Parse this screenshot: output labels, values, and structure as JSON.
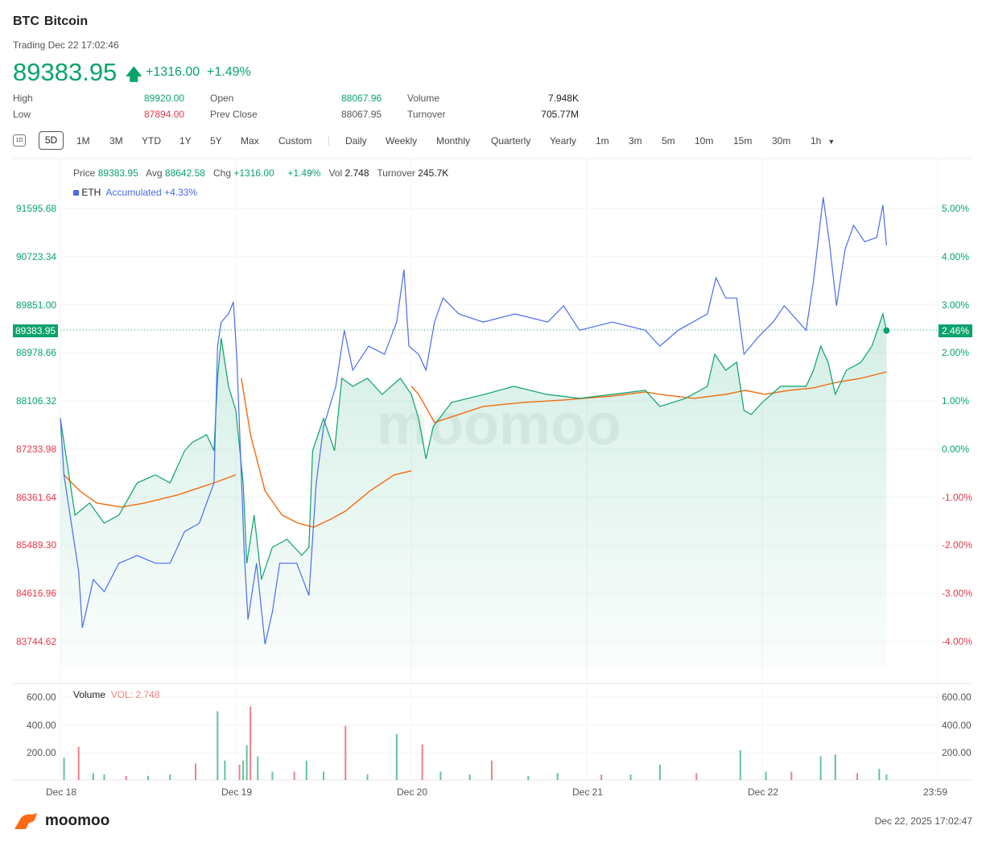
{
  "header": {
    "symbol": "BTC",
    "name": "Bitcoin",
    "trading": "Trading Dec 22 17:02:46",
    "price": "89383.95",
    "arrow_icon": "arrow-up-icon",
    "change": "+1316.00",
    "change_pct": "+1.49%"
  },
  "stats": [
    {
      "label": "High",
      "value": "89920.00",
      "color": "green"
    },
    {
      "label": "Low",
      "value": "87894.00",
      "color": "red"
    },
    {
      "label": "Open",
      "value": "88067.96",
      "color": "green"
    },
    {
      "label": "Prev Close",
      "value": "88067.95",
      "color": "neutral"
    },
    {
      "label": "Volume",
      "value": "7.948K",
      "color": "neutral"
    },
    {
      "label": "Turnover",
      "value": "705.77M",
      "color": "neutral"
    }
  ],
  "toolbar": {
    "btn_1d": "1D",
    "ranges": [
      "5D",
      "1M",
      "3M",
      "YTD",
      "1Y",
      "5Y",
      "Max",
      "Custom"
    ],
    "active_range": "5D",
    "periods": [
      "Daily",
      "Weekly",
      "Monthly",
      "Quarterly",
      "Yearly",
      "1m",
      "3m",
      "5m",
      "10m",
      "15m",
      "30m",
      "1h"
    ]
  },
  "info": {
    "price_label": "Price",
    "price": "89383.95",
    "avg_label": "Avg",
    "avg": "88642.58",
    "chg_label": "Chg",
    "chg": "+1316.00",
    "chg_pct": "+1.49%",
    "vol_label": "Vol",
    "vol": "2.748",
    "turnover_label": "Turnover",
    "turnover": "245.7K",
    "compare_symbol": "ETH",
    "compare_text": "Accumulated +4.33%"
  },
  "volume_panel": {
    "label": "Volume",
    "vol_text": "VOL: 2.748"
  },
  "footer": {
    "brand": "moomoo",
    "timestamp": "Dec 22, 2025 17:02:47"
  },
  "colors": {
    "up": "#0aa36b",
    "down": "#e8394c",
    "eth": "#4a6cf0",
    "avg": "#f26b0f"
  },
  "chart_data": {
    "type": "line",
    "x_ticks": [
      "Dec 18",
      "Dec 19",
      "Dec 20",
      "Dec 21",
      "Dec 22",
      "23:59"
    ],
    "y_ticks_left": [
      "91595.68",
      "90723.34",
      "89851.00",
      "88978.66",
      "88106.32",
      "87233.98",
      "86361.64",
      "85489.30",
      "84616.96",
      "83744.62"
    ],
    "y_ticks_right": [
      "5.00%",
      "4.00%",
      "3.00%",
      "2.00%",
      "1.00%",
      "0.00%",
      "-1.00%",
      "-2.00%",
      "-3.00%",
      "-4.00%"
    ],
    "ylim_price": [
      83744.62,
      91595.68
    ],
    "prev_close": 88067.95,
    "current_price_label": "89383.95",
    "current_pct_label": "2.46%",
    "volume_ticks": [
      "600.00",
      "400.00",
      "200.00"
    ],
    "volume_ticks_right": [
      "600.00",
      "400.00",
      "200.00"
    ],
    "grid": true,
    "series": [
      {
        "name": "BTC",
        "kind": "price",
        "points": [
          [
            "12-18 00:00",
            87788
          ],
          [
            "12-18 01:00",
            86913
          ],
          [
            "12-18 02:00",
            86037
          ],
          [
            "12-18 04:00",
            86256
          ],
          [
            "12-18 06:00",
            85891
          ],
          [
            "12-18 08:00",
            86037
          ],
          [
            "12-18 10:30",
            86621
          ],
          [
            "12-18 13:00",
            86767
          ],
          [
            "12-18 15:00",
            86621
          ],
          [
            "12-18 17:00",
            87205
          ],
          [
            "12-18 18:00",
            87351
          ],
          [
            "12-18 20:00",
            87497
          ],
          [
            "12-18 21:00",
            87205
          ],
          [
            "12-18 21:30",
            88518
          ],
          [
            "12-18 22:00",
            89247
          ],
          [
            "12-18 23:00",
            88372
          ],
          [
            "12-19 00:00",
            87934
          ],
          [
            "12-19 01:00",
            86621
          ],
          [
            "12-19 01:30",
            85162
          ],
          [
            "12-19 02:30",
            86037
          ],
          [
            "12-19 03:30",
            84870
          ],
          [
            "12-19 05:00",
            85454
          ],
          [
            "12-19 07:00",
            85600
          ],
          [
            "12-19 09:00",
            85308
          ],
          [
            "12-19 10:00",
            85454
          ],
          [
            "12-19 10:30",
            87205
          ],
          [
            "12-19 12:00",
            87788
          ],
          [
            "12-19 13:30",
            87205
          ],
          [
            "12-19 14:30",
            88518
          ],
          [
            "12-19 16:00",
            88372
          ],
          [
            "12-19 18:00",
            88518
          ],
          [
            "12-19 20:00",
            88226
          ],
          [
            "12-19 22:30",
            88518
          ],
          [
            "12-20 00:00",
            88226
          ],
          [
            "12-20 01:00",
            87788
          ],
          [
            "12-20 02:00",
            87059
          ],
          [
            "12-20 03:00",
            87642
          ],
          [
            "12-20 05:30",
            88080
          ],
          [
            "12-20 10:00",
            88226
          ],
          [
            "12-20 14:00",
            88372
          ],
          [
            "12-20 18:30",
            88226
          ],
          [
            "12-20 23:00",
            88153
          ],
          [
            "12-21 03:30",
            88226
          ],
          [
            "12-21 08:00",
            88299
          ],
          [
            "12-21 10:00",
            88007
          ],
          [
            "12-21 13:30",
            88153
          ],
          [
            "12-21 16:30",
            88372
          ],
          [
            "12-21 17:30",
            88955
          ],
          [
            "12-21 19:00",
            88663
          ],
          [
            "12-21 20:30",
            88809
          ],
          [
            "12-21 21:30",
            87934
          ],
          [
            "12-21 22:30",
            87861
          ],
          [
            "12-22 00:00",
            88080
          ],
          [
            "12-22 02:30",
            88372
          ],
          [
            "12-22 06:00",
            88372
          ],
          [
            "12-22 07:00",
            88663
          ],
          [
            "12-22 08:00",
            89101
          ],
          [
            "12-22 09:00",
            88809
          ],
          [
            "12-22 10:00",
            88226
          ],
          [
            "12-22 11:30",
            88663
          ],
          [
            "12-22 13:30",
            88809
          ],
          [
            "12-22 15:00",
            89101
          ],
          [
            "12-22 16:30",
            89685
          ],
          [
            "12-22 17:00",
            89383
          ]
        ]
      },
      {
        "name": "ETH",
        "kind": "percent",
        "points": [
          [
            "12-18 00:00",
            0.64
          ],
          [
            "12-18 00:30",
            -0.54
          ],
          [
            "12-18 01:30",
            -1.54
          ],
          [
            "12-18 02:30",
            -2.54
          ],
          [
            "12-18 03:00",
            -3.71
          ],
          [
            "12-18 04:30",
            -2.71
          ],
          [
            "12-18 06:00",
            -2.96
          ],
          [
            "12-18 08:00",
            -2.37
          ],
          [
            "12-18 10:30",
            -2.21
          ],
          [
            "12-18 13:00",
            -2.37
          ],
          [
            "12-18 15:00",
            -2.37
          ],
          [
            "12-18 17:00",
            -1.71
          ],
          [
            "12-18 19:00",
            -1.54
          ],
          [
            "12-18 21:00",
            -0.7
          ],
          [
            "12-18 21:30",
            2.14
          ],
          [
            "12-18 22:00",
            2.64
          ],
          [
            "12-18 23:00",
            2.81
          ],
          [
            "12-18 23:40",
            3.06
          ],
          [
            "12-19 00:10",
            1.81
          ],
          [
            "12-19 01:10",
            -2.21
          ],
          [
            "12-19 01:40",
            -3.54
          ],
          [
            "12-19 02:50",
            -2.37
          ],
          [
            "12-19 04:00",
            -4.05
          ],
          [
            "12-19 05:00",
            -3.38
          ],
          [
            "12-19 06:00",
            -2.37
          ],
          [
            "12-19 08:20",
            -2.37
          ],
          [
            "12-19 10:00",
            -3.04
          ],
          [
            "12-19 11:00",
            -0.7
          ],
          [
            "12-19 12:00",
            0.47
          ],
          [
            "12-19 13:40",
            1.3
          ],
          [
            "12-19 14:50",
            2.47
          ],
          [
            "12-19 16:00",
            1.64
          ],
          [
            "12-19 18:10",
            2.14
          ],
          [
            "12-19 20:20",
            1.97
          ],
          [
            "12-19 22:00",
            2.64
          ],
          [
            "12-19 23:00",
            3.73
          ],
          [
            "12-19 23:40",
            2.14
          ],
          [
            "12-20 01:00",
            1.97
          ],
          [
            "12-20 02:00",
            1.64
          ],
          [
            "12-20 03:10",
            2.64
          ],
          [
            "12-20 04:20",
            3.14
          ],
          [
            "12-20 06:30",
            2.81
          ],
          [
            "12-20 09:50",
            2.64
          ],
          [
            "12-20 14:10",
            2.81
          ],
          [
            "12-20 18:40",
            2.64
          ],
          [
            "12-20 20:50",
            2.98
          ],
          [
            "12-20 23:00",
            2.47
          ],
          [
            "12-21 03:30",
            2.64
          ],
          [
            "12-21 08:00",
            2.47
          ],
          [
            "12-21 10:00",
            2.14
          ],
          [
            "12-21 12:30",
            2.47
          ],
          [
            "12-21 16:30",
            2.81
          ],
          [
            "12-21 17:40",
            3.56
          ],
          [
            "12-21 19:00",
            3.14
          ],
          [
            "12-21 20:30",
            3.14
          ],
          [
            "12-21 21:30",
            1.97
          ],
          [
            "12-21 23:20",
            2.31
          ],
          [
            "12-22 01:30",
            2.64
          ],
          [
            "12-22 03:00",
            2.98
          ],
          [
            "12-22 06:00",
            2.47
          ],
          [
            "12-22 07:00",
            3.48
          ],
          [
            "12-22 08:20",
            5.23
          ],
          [
            "12-22 09:10",
            4.31
          ],
          [
            "12-22 10:10",
            2.98
          ],
          [
            "12-22 11:20",
            4.15
          ],
          [
            "12-22 12:30",
            4.65
          ],
          [
            "12-22 14:00",
            4.31
          ],
          [
            "12-22 15:40",
            4.4
          ],
          [
            "12-22 16:30",
            5.07
          ],
          [
            "12-22 17:00",
            4.23
          ]
        ]
      },
      {
        "name": "Avg",
        "kind": "price",
        "segments": [
          [
            [
              "12-18 00:30",
              86767
            ],
            [
              "12-18 02:40",
              86475
            ],
            [
              "12-18 05:00",
              86256
            ],
            [
              "12-18 08:20",
              86183
            ],
            [
              "12-18 11:30",
              86256
            ],
            [
              "12-18 16:00",
              86402
            ],
            [
              "12-18 21:00",
              86621
            ],
            [
              "12-19 00:00",
              86767
            ]
          ],
          [
            [
              "12-19 00:45",
              88518
            ],
            [
              "12-19 02:00",
              87497
            ],
            [
              "12-19 04:00",
              86475
            ],
            [
              "12-19 06:20",
              86037
            ],
            [
              "12-19 08:30",
              85891
            ],
            [
              "12-19 10:40",
              85818
            ],
            [
              "12-19 13:00",
              85964
            ],
            [
              "12-19 15:00",
              86110
            ],
            [
              "12-19 18:20",
              86475
            ],
            [
              "12-19 21:40",
              86767
            ],
            [
              "12-20 00:00",
              86840
            ]
          ],
          [
            [
              "12-20 00:00",
              88372
            ],
            [
              "12-20 01:00",
              88226
            ],
            [
              "12-20 03:10",
              87715
            ],
            [
              "12-20 06:30",
              87861
            ],
            [
              "12-20 09:50",
              88007
            ],
            [
              "12-20 15:20",
              88080
            ],
            [
              "12-20 20:50",
              88124
            ],
            [
              "12-21 03:30",
              88197
            ],
            [
              "12-21 08:00",
              88270
            ],
            [
              "12-21 10:00",
              88226
            ],
            [
              "12-21 14:40",
              88153
            ],
            [
              "12-21 19:00",
              88226
            ],
            [
              "12-21 21:40",
              88299
            ],
            [
              "12-22 00:20",
              88226
            ],
            [
              "12-22 03:40",
              88299
            ],
            [
              "12-22 07:00",
              88343
            ],
            [
              "12-22 10:10",
              88445
            ],
            [
              "12-22 13:30",
              88518
            ],
            [
              "12-22 17:00",
              88634
            ]
          ]
        ]
      }
    ],
    "volume": [
      [
        "12-18 00:30",
        160
      ],
      [
        "12-18 02:30",
        240
      ],
      [
        "12-18 04:30",
        50
      ],
      [
        "12-18 06:00",
        40
      ],
      [
        "12-18 09:00",
        30
      ],
      [
        "12-18 12:00",
        30
      ],
      [
        "12-18 15:00",
        40
      ],
      [
        "12-18 18:30",
        120
      ],
      [
        "12-18 21:30",
        495
      ],
      [
        "12-18 22:30",
        140
      ],
      [
        "12-19 00:30",
        110
      ],
      [
        "12-19 01:00",
        140
      ],
      [
        "12-19 01:30",
        250
      ],
      [
        "12-19 02:00",
        530
      ],
      [
        "12-19 03:00",
        170
      ],
      [
        "12-19 05:00",
        60
      ],
      [
        "12-19 08:00",
        60
      ],
      [
        "12-19 09:40",
        140
      ],
      [
        "12-19 12:00",
        60
      ],
      [
        "12-19 15:00",
        390
      ],
      [
        "12-19 18:00",
        40
      ],
      [
        "12-19 22:00",
        330
      ],
      [
        "12-20 01:30",
        255
      ],
      [
        "12-20 04:00",
        60
      ],
      [
        "12-20 08:00",
        40
      ],
      [
        "12-20 11:00",
        140
      ],
      [
        "12-20 16:00",
        30
      ],
      [
        "12-20 20:00",
        50
      ],
      [
        "12-21 02:00",
        40
      ],
      [
        "12-21 06:00",
        40
      ],
      [
        "12-21 10:00",
        110
      ],
      [
        "12-21 15:00",
        50
      ],
      [
        "12-21 21:00",
        215
      ],
      [
        "12-22 00:30",
        60
      ],
      [
        "12-22 04:00",
        60
      ],
      [
        "12-22 08:00",
        170
      ],
      [
        "12-22 10:00",
        185
      ],
      [
        "12-22 13:00",
        50
      ],
      [
        "12-22 16:00",
        80
      ],
      [
        "12-22 17:00",
        40
      ]
    ]
  }
}
